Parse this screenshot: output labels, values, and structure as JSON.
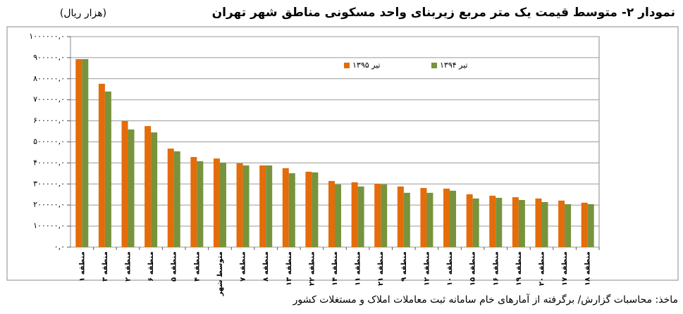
{
  "chart_data": {
    "type": "bar",
    "title": "نمودار ۲- متوسط قیمت یک متر مربع زیربنای واحد مسکونی مناطق شهر تهران",
    "unit_label": "(هزار ریال)",
    "source": "ماخذ: محاسبات گزارش/ برگرفته از آمارهای خام سامانه ثبت معاملات املاک و مستغلات کشور",
    "categories": [
      "منطقه ۱",
      "منطقه ۳",
      "منطقه ۲",
      "منطقه ۶",
      "منطقه ۵",
      "منطقه ۴",
      "متوسط شهر",
      "منطقه ۷",
      "منطقه ۸",
      "منطقه ۱۳",
      "منطقه ۲۲",
      "منطقه ۱۴",
      "منطقه ۱۱",
      "منطقه ۲۱",
      "منطقه ۹",
      "منطقه ۱۲",
      "منطقه ۱۰",
      "منطقه ۱۵",
      "منطقه ۱۶",
      "منطقه ۱۹",
      "منطقه ۲۰",
      "منطقه ۱۷",
      "منطقه ۱۸"
    ],
    "series": [
      {
        "name": "تیر ۱۳۹۵",
        "color": "#e46c0a",
        "values": [
          893000,
          776000,
          599000,
          575000,
          468000,
          428000,
          421000,
          398000,
          388000,
          375000,
          358000,
          314000,
          308000,
          301000,
          288000,
          281000,
          278000,
          251000,
          244000,
          237000,
          231000,
          221000,
          211000
        ]
      },
      {
        "name": "تیر ۱۳۹۴",
        "color": "#77933c",
        "values": [
          893000,
          739000,
          559000,
          545000,
          455000,
          408000,
          401000,
          388000,
          388000,
          351000,
          355000,
          298000,
          288000,
          298000,
          258000,
          258000,
          268000,
          231000,
          234000,
          224000,
          214000,
          204000,
          204000
        ]
      }
    ],
    "ylim": [
      0,
      1000000
    ],
    "yticks": [
      {
        "value": 0,
        "label": "۰,۰"
      },
      {
        "value": 100000,
        "label": "۱۰۰۰۰۰,۰"
      },
      {
        "value": 200000,
        "label": "۲۰۰۰۰۰,۰"
      },
      {
        "value": 300000,
        "label": "۳۰۰۰۰۰,۰"
      },
      {
        "value": 400000,
        "label": "۴۰۰۰۰۰,۰"
      },
      {
        "value": 500000,
        "label": "۵۰۰۰۰۰,۰"
      },
      {
        "value": 600000,
        "label": "۶۰۰۰۰۰,۰"
      },
      {
        "value": 700000,
        "label": "۷۰۰۰۰۰,۰"
      },
      {
        "value": 800000,
        "label": "۸۰۰۰۰۰,۰"
      },
      {
        "value": 900000,
        "label": "۹۰۰۰۰۰,۰"
      },
      {
        "value": 1000000,
        "label": "۱۰۰۰۰۰۰,۰"
      }
    ],
    "grid": true
  }
}
